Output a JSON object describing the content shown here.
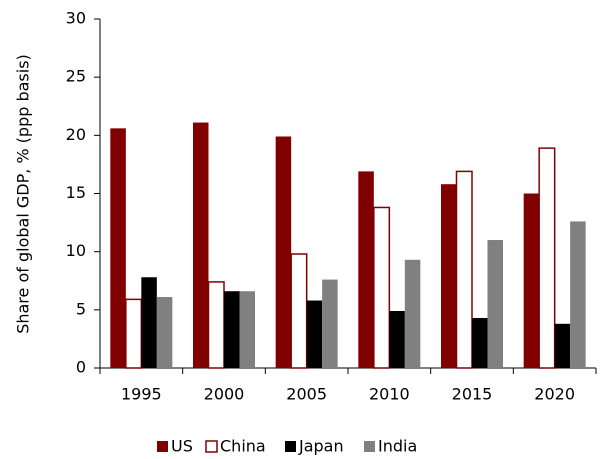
{
  "chart_data": {
    "type": "bar",
    "y_label": "Share of global GDP, % (ppp basis)",
    "categories": [
      "1995",
      "2000",
      "2005",
      "2010",
      "2015",
      "2020"
    ],
    "series": [
      {
        "name": "US",
        "color": "#800000",
        "fill": "#800000",
        "values": [
          20.6,
          21.1,
          19.9,
          16.9,
          15.8,
          15.0
        ]
      },
      {
        "name": "China",
        "color": "#800000",
        "fill": "#ffffff",
        "values": [
          5.9,
          7.4,
          9.8,
          13.8,
          16.9,
          18.9
        ]
      },
      {
        "name": "Japan",
        "color": "#000000",
        "fill": "#000000",
        "values": [
          7.8,
          6.6,
          5.8,
          4.9,
          4.3,
          3.8
        ]
      },
      {
        "name": "India",
        "color": "#808080",
        "fill": "#808080",
        "values": [
          6.1,
          6.6,
          7.6,
          9.3,
          11.0,
          12.6
        ]
      }
    ],
    "ylim": [
      0,
      30
    ],
    "yticks": [
      0,
      5,
      10,
      15,
      20,
      25,
      30
    ],
    "grid": false,
    "legend": "bottom"
  }
}
